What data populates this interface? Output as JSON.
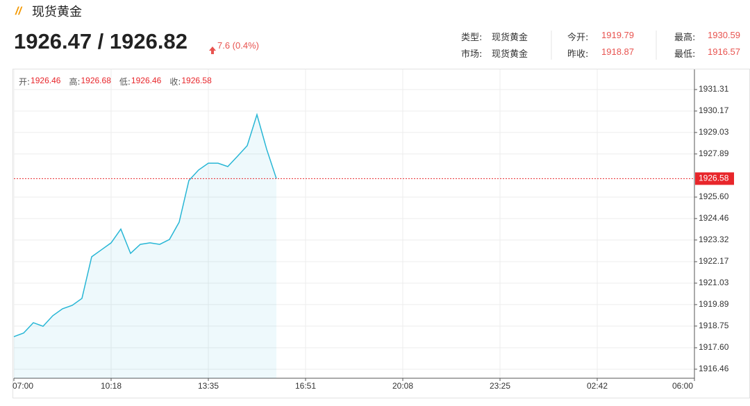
{
  "header": {
    "title": "现货黄金",
    "price": "1926.47 / 1926.82",
    "change": "7.6 (0.4%)",
    "info": [
      [
        {
          "label": "类型:",
          "value": "现货黄金"
        },
        {
          "label": "今开:",
          "value": "1919.79"
        },
        {
          "label": "最高:",
          "value": "1930.59"
        }
      ],
      [
        {
          "label": "市场:",
          "value": "现货黄金"
        },
        {
          "label": "昨收:",
          "value": "1918.87"
        },
        {
          "label": "最低:",
          "value": "1916.57"
        }
      ]
    ]
  },
  "ohlc": [
    {
      "label": "开:",
      "value": "1926.46"
    },
    {
      "label": "高:",
      "value": "1926.68"
    },
    {
      "label": "低:",
      "value": "1926.46"
    },
    {
      "label": "收:",
      "value": "1926.58"
    }
  ],
  "chart_data": {
    "type": "line",
    "categories": [
      "07:00",
      null,
      null,
      null,
      null,
      null,
      null,
      null,
      null,
      null,
      "10:18",
      null,
      null,
      null,
      null,
      null,
      null,
      null,
      null,
      null,
      "13:35",
      null,
      null,
      null,
      null,
      null,
      null,
      null,
      null,
      null,
      "16:51",
      null,
      null,
      null,
      null,
      null,
      null,
      null,
      null,
      null,
      "20:08",
      null,
      null,
      null,
      null,
      null,
      null,
      null,
      null,
      null,
      "23:25",
      null,
      null,
      null,
      null,
      null,
      null,
      null,
      null,
      null,
      "02:42",
      null,
      null,
      null,
      null,
      null,
      null,
      null,
      null,
      null,
      "06:00"
    ],
    "series": [
      {
        "color": "#27b6d5",
        "values": [
          1918.19,
          1918.38,
          1918.93,
          1918.74,
          1919.3,
          1919.67,
          1919.85,
          1920.22,
          1922.43,
          1922.8,
          1923.17,
          1923.9,
          1922.61,
          1923.09,
          1923.17,
          1923.09,
          1923.35,
          1924.27,
          1926.48,
          1927.04,
          1927.4,
          1927.4,
          1927.22,
          1927.77,
          1928.33,
          1929.98,
          1928.14,
          1926.58,
          null,
          null,
          null,
          null,
          null,
          null,
          null,
          null,
          null,
          null,
          null,
          null,
          null,
          null,
          null,
          null,
          null,
          null,
          null,
          null,
          null,
          null,
          null,
          null,
          null,
          null,
          null,
          null,
          null,
          null,
          null,
          null,
          null,
          null,
          null,
          null,
          null,
          null,
          null,
          null,
          null,
          null,
          null
        ]
      }
    ],
    "last_price": 1926.58,
    "last_color": "#e8262b",
    "ylim": [
      1915.98,
      1932.38
    ],
    "yticks": [
      1931.31,
      1930.17,
      1929.03,
      1927.89,
      {
        "value": 1925.6,
        "label": "1925.60"
      },
      1924.46,
      1923.32,
      1922.17,
      1921.03,
      1919.89,
      1918.75,
      {
        "value": 1917.6,
        "label": "1917.60"
      },
      1916.46
    ],
    "grid": true
  }
}
